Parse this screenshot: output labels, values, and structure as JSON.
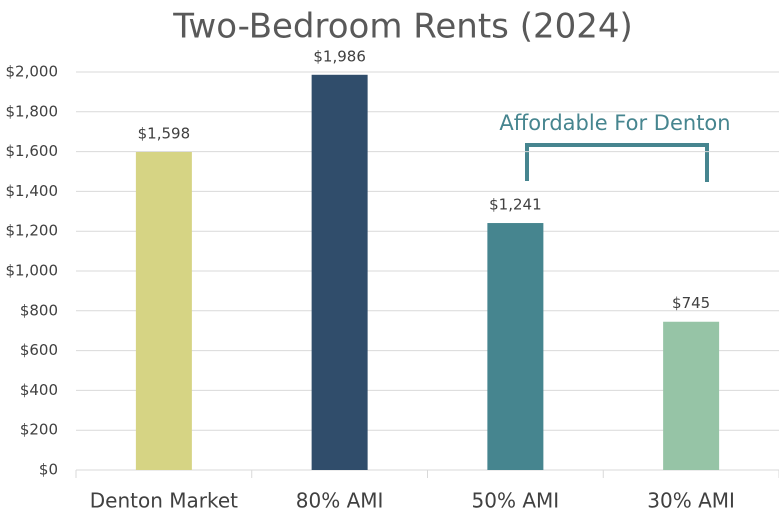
{
  "chart_data": {
    "type": "bar",
    "title": "Two-Bedroom Rents (2024)",
    "categories": [
      "Denton Market",
      "80% AMI",
      "50% AMI",
      "30% AMI"
    ],
    "values": [
      1598,
      1986,
      1241,
      745
    ],
    "value_labels": [
      "$1,598",
      "$1,986",
      "$1,241",
      "$745"
    ],
    "colors": [
      "#d6d484",
      "#304d6b",
      "#46858f",
      "#96c4a6"
    ],
    "ylim": [
      0,
      2000
    ],
    "yticks": [
      {
        "value": 0,
        "label": "$0"
      },
      {
        "value": 200,
        "label": "$200"
      },
      {
        "value": 400,
        "label": "$400"
      },
      {
        "value": 600,
        "label": "$600"
      },
      {
        "value": 800,
        "label": "$800"
      },
      {
        "value": 1000,
        "label": "$1,000"
      },
      {
        "value": 1200,
        "label": "$1,200"
      },
      {
        "value": 1400,
        "label": "$1,400"
      },
      {
        "value": 1600,
        "label": "$1,600"
      },
      {
        "value": 1800,
        "label": "$1,800"
      },
      {
        "value": 2000,
        "label": "$2,000"
      }
    ],
    "grid": true,
    "annotation": "Affordable For Denton"
  }
}
